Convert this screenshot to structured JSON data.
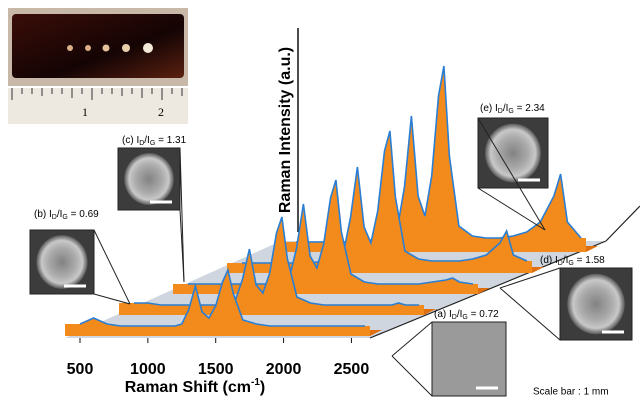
{
  "chart_data": {
    "type": "waterfall",
    "ylabel": "Raman Intensity (a.u.)",
    "xlabel": [
      "Raman Shift (cm",
      "-1",
      ")"
    ],
    "x": [
      500,
      600,
      700,
      800,
      900,
      1000,
      1100,
      1200,
      1250,
      1300,
      1350,
      1400,
      1450,
      1500,
      1550,
      1590,
      1630,
      1700,
      1800,
      1900,
      2000,
      2100,
      2200,
      2300,
      2400,
      2450,
      2500,
      2600
    ],
    "xlim": [
      500,
      2600
    ],
    "xticks": [
      500,
      1000,
      1500,
      2000,
      2500
    ],
    "ylim": [
      0,
      10
    ],
    "color": "#f28a1c",
    "line_color": "#2a7fd4",
    "series": [
      {
        "label": [
          "(a) I",
          "D",
          "/I",
          "G",
          " = 0.72"
        ],
        "values": [
          0.3,
          0.6,
          0.3,
          0.2,
          0.2,
          0.2,
          0.2,
          0.2,
          0.3,
          1.0,
          2.2,
          0.9,
          0.6,
          1.2,
          2.4,
          3.0,
          1.8,
          0.5,
          0.3,
          0.2,
          0.2,
          0.2,
          0.2,
          0.2,
          0.2,
          0.2,
          0.2,
          0.2
        ]
      },
      {
        "label": [
          "(b) I",
          "D",
          "/I",
          "G",
          " = 0.69"
        ],
        "values": [
          0.3,
          0.3,
          0.2,
          0.2,
          0.2,
          0.2,
          0.2,
          0.3,
          0.5,
          1.5,
          3.0,
          1.2,
          0.8,
          1.8,
          3.8,
          4.6,
          2.5,
          0.6,
          0.3,
          0.2,
          0.2,
          0.2,
          0.2,
          0.2,
          0.2,
          0.3,
          0.2,
          0.2
        ]
      },
      {
        "label": [
          "(c) I",
          "D",
          "/I",
          "G",
          " = 1.31"
        ],
        "values": [
          0.2,
          0.2,
          0.2,
          0.2,
          0.2,
          0.2,
          0.2,
          0.3,
          0.6,
          2.0,
          4.2,
          1.6,
          1.0,
          2.2,
          4.5,
          5.4,
          2.8,
          0.7,
          0.3,
          0.2,
          0.2,
          0.2,
          0.2,
          0.3,
          0.4,
          0.5,
          0.3,
          0.2
        ]
      },
      {
        "label": [
          "(d) I",
          "D",
          "/I",
          "G",
          " = 1.58"
        ],
        "values": [
          0.2,
          0.2,
          0.2,
          0.2,
          0.2,
          0.2,
          0.3,
          0.4,
          0.8,
          2.5,
          5.0,
          2.0,
          1.2,
          2.8,
          5.8,
          6.8,
          3.5,
          0.8,
          0.4,
          0.3,
          0.3,
          0.3,
          0.4,
          0.6,
          1.2,
          1.8,
          0.6,
          0.3
        ]
      },
      {
        "label": [
          "(e) I",
          "D",
          "/I",
          "G",
          " = 2.34"
        ],
        "values": [
          0.2,
          0.2,
          0.2,
          0.2,
          0.2,
          0.3,
          0.3,
          0.5,
          1.0,
          3.0,
          6.5,
          2.5,
          1.5,
          3.5,
          7.5,
          9.0,
          4.5,
          1.0,
          0.5,
          0.4,
          0.4,
          0.5,
          0.7,
          1.2,
          2.5,
          3.6,
          1.2,
          0.4
        ]
      }
    ],
    "scale_note": "Scale bar : 1 mm",
    "ruler_labels": [
      "1",
      "2"
    ]
  }
}
